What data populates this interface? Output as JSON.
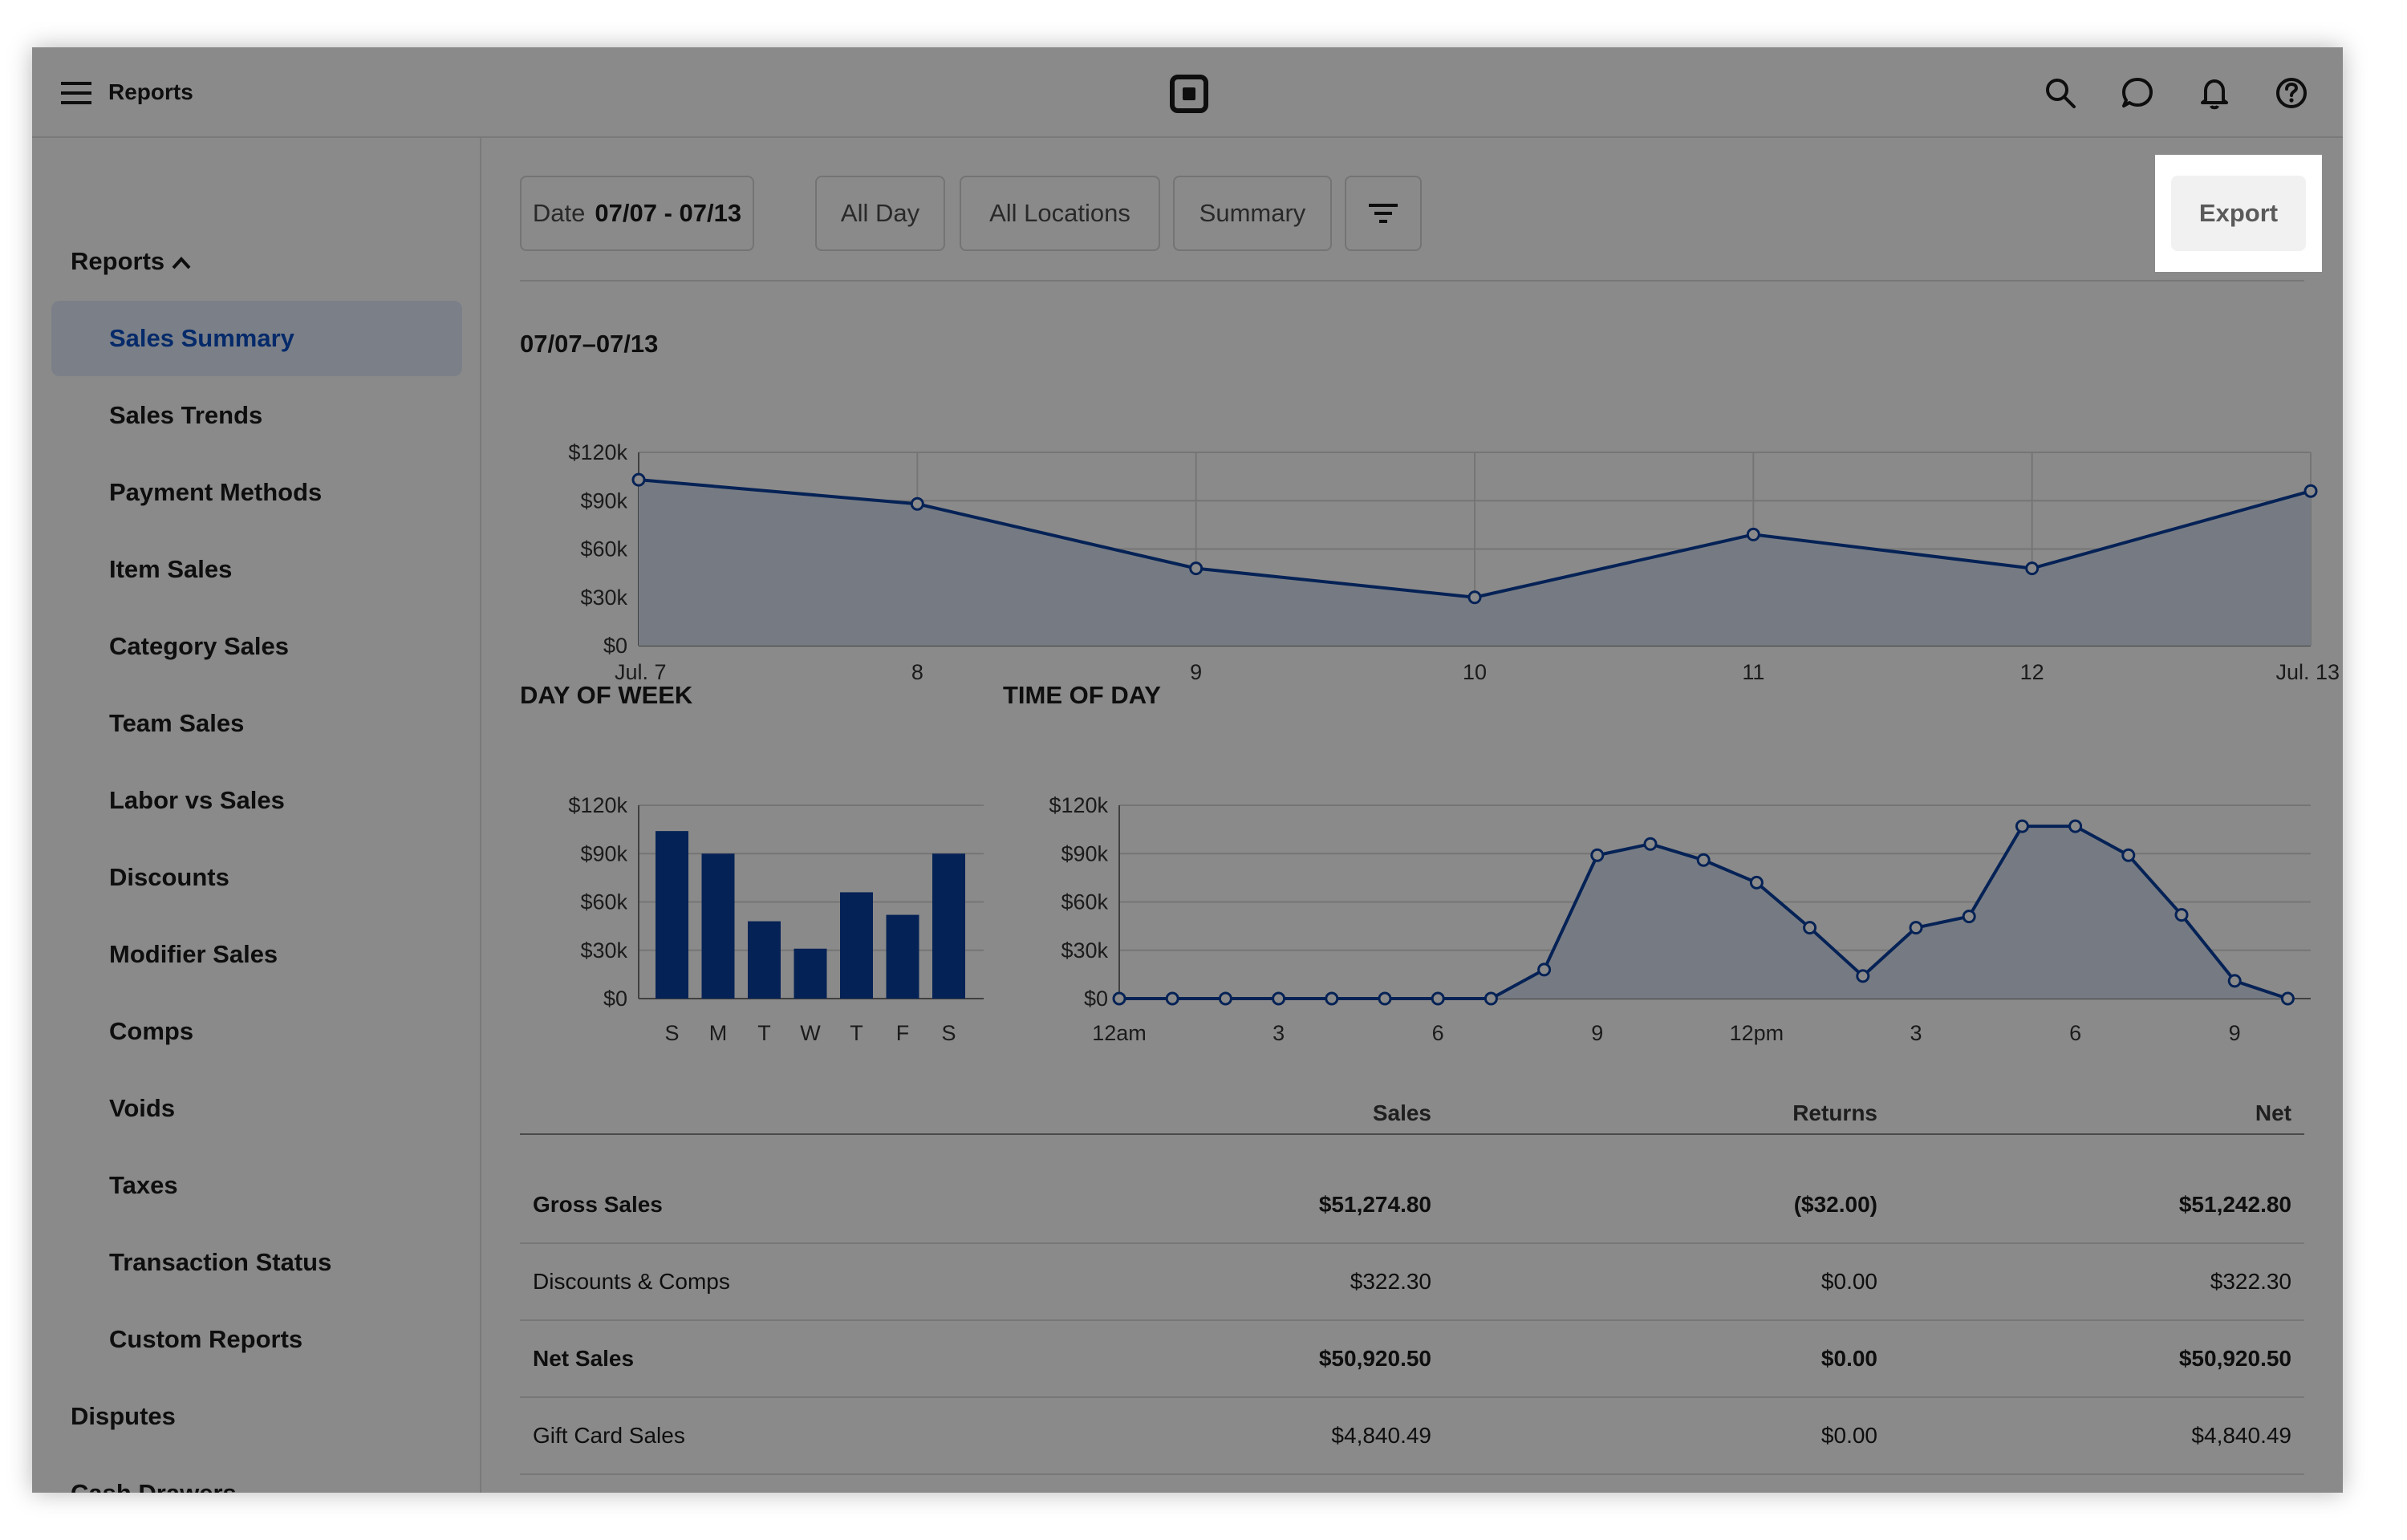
{
  "header": {
    "title": "Reports",
    "icons": [
      "menu-icon",
      "square-logo-icon",
      "search-icon",
      "chat-icon",
      "bell-icon",
      "help-icon"
    ]
  },
  "sidebar": {
    "group_reports": "Reports",
    "items": [
      "Sales Summary",
      "Sales Trends",
      "Payment Methods",
      "Item Sales",
      "Category Sales",
      "Team Sales",
      "Labor vs Sales",
      "Discounts",
      "Modifier Sales",
      "Comps",
      "Voids",
      "Taxes",
      "Transaction Status",
      "Custom Reports"
    ],
    "active_item": "Sales Summary",
    "group_disputes": "Disputes",
    "group_cash_drawers": "Cash Drawers"
  },
  "filters": {
    "date_label": "Date",
    "date_value": "07/07 - 07/13",
    "time": "All Day",
    "locations": "All Locations",
    "view": "Summary",
    "filter_icon": "filter-icon",
    "export_label": "Export"
  },
  "colors": {
    "accent": "#0b3fa0",
    "active_bg": "#e3edfb",
    "active_text": "#0b4fc4",
    "area_fill": "#dbe4f3",
    "overlay": "rgba(0,0,0,0.46)"
  },
  "chart_data": [
    {
      "type": "area",
      "title": "07/07–07/13",
      "x": [
        "Jul. 7",
        "8",
        "9",
        "10",
        "11",
        "12",
        "Jul. 13"
      ],
      "values": [
        103000,
        88000,
        48000,
        30000,
        69000,
        48000,
        96000
      ],
      "ylim": [
        0,
        120000
      ],
      "yticks": [
        "$0",
        "$30k",
        "$60k",
        "$90k",
        "$120k"
      ],
      "grid": true
    },
    {
      "type": "bar",
      "title": "DAY OF WEEK",
      "categories": [
        "S",
        "M",
        "T",
        "W",
        "T",
        "F",
        "S"
      ],
      "values": [
        104000,
        90000,
        48000,
        31000,
        66000,
        52000,
        90000
      ],
      "ylim": [
        0,
        120000
      ],
      "yticks": [
        "$0",
        "$30k",
        "$60k",
        "$90k",
        "$120k"
      ],
      "grid": true
    },
    {
      "type": "area",
      "title": "TIME OF DAY",
      "xticks": [
        "12am",
        "3",
        "6",
        "9",
        "12pm",
        "3",
        "6",
        "9"
      ],
      "x_hours": [
        0,
        1,
        2,
        3,
        4,
        5,
        6,
        7,
        8,
        9,
        10,
        11,
        12,
        13,
        14,
        15,
        16,
        17,
        18,
        19,
        20,
        21,
        22
      ],
      "values": [
        0,
        0,
        0,
        0,
        0,
        0,
        0,
        0,
        18000,
        89000,
        96000,
        86000,
        72000,
        44000,
        14000,
        44000,
        51000,
        107000,
        107000,
        89000,
        52000,
        11000,
        0
      ],
      "ylim": [
        0,
        120000
      ],
      "yticks": [
        "$0",
        "$30k",
        "$60k",
        "$90k",
        "$120k"
      ],
      "grid": true
    }
  ],
  "table": {
    "headers": [
      "Sales",
      "Returns",
      "Net"
    ],
    "rows": [
      {
        "label": "Gross Sales",
        "sales": "$51,274.80",
        "returns": "($32.00)",
        "net": "$51,242.80",
        "bold": true
      },
      {
        "label": "Discounts & Comps",
        "sales": "$322.30",
        "returns": "$0.00",
        "net": "$322.30",
        "bold": false
      },
      {
        "label": "Net Sales",
        "sales": "$50,920.50",
        "returns": "$0.00",
        "net": "$50,920.50",
        "bold": true
      },
      {
        "label": "Gift Card Sales",
        "sales": "$4,840.49",
        "returns": "$0.00",
        "net": "$4,840.49",
        "bold": false
      }
    ]
  }
}
